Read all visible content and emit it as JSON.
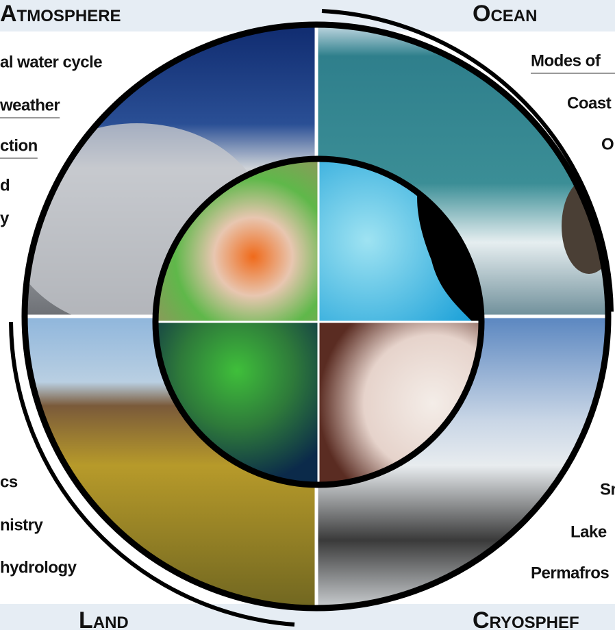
{
  "headers": {
    "atmosphere": "Atmosphere",
    "ocean": "Ocean",
    "land": "Land",
    "cryosphere": "Cryosphef"
  },
  "left_labels": [
    "al water cycle",
    "weather",
    "ction",
    "d",
    "y",
    "cs",
    "nistry",
    "hydrology"
  ],
  "right_labels": [
    "Modes of",
    "Coast",
    "O",
    "Sr",
    "Lake",
    "Permafros"
  ]
}
